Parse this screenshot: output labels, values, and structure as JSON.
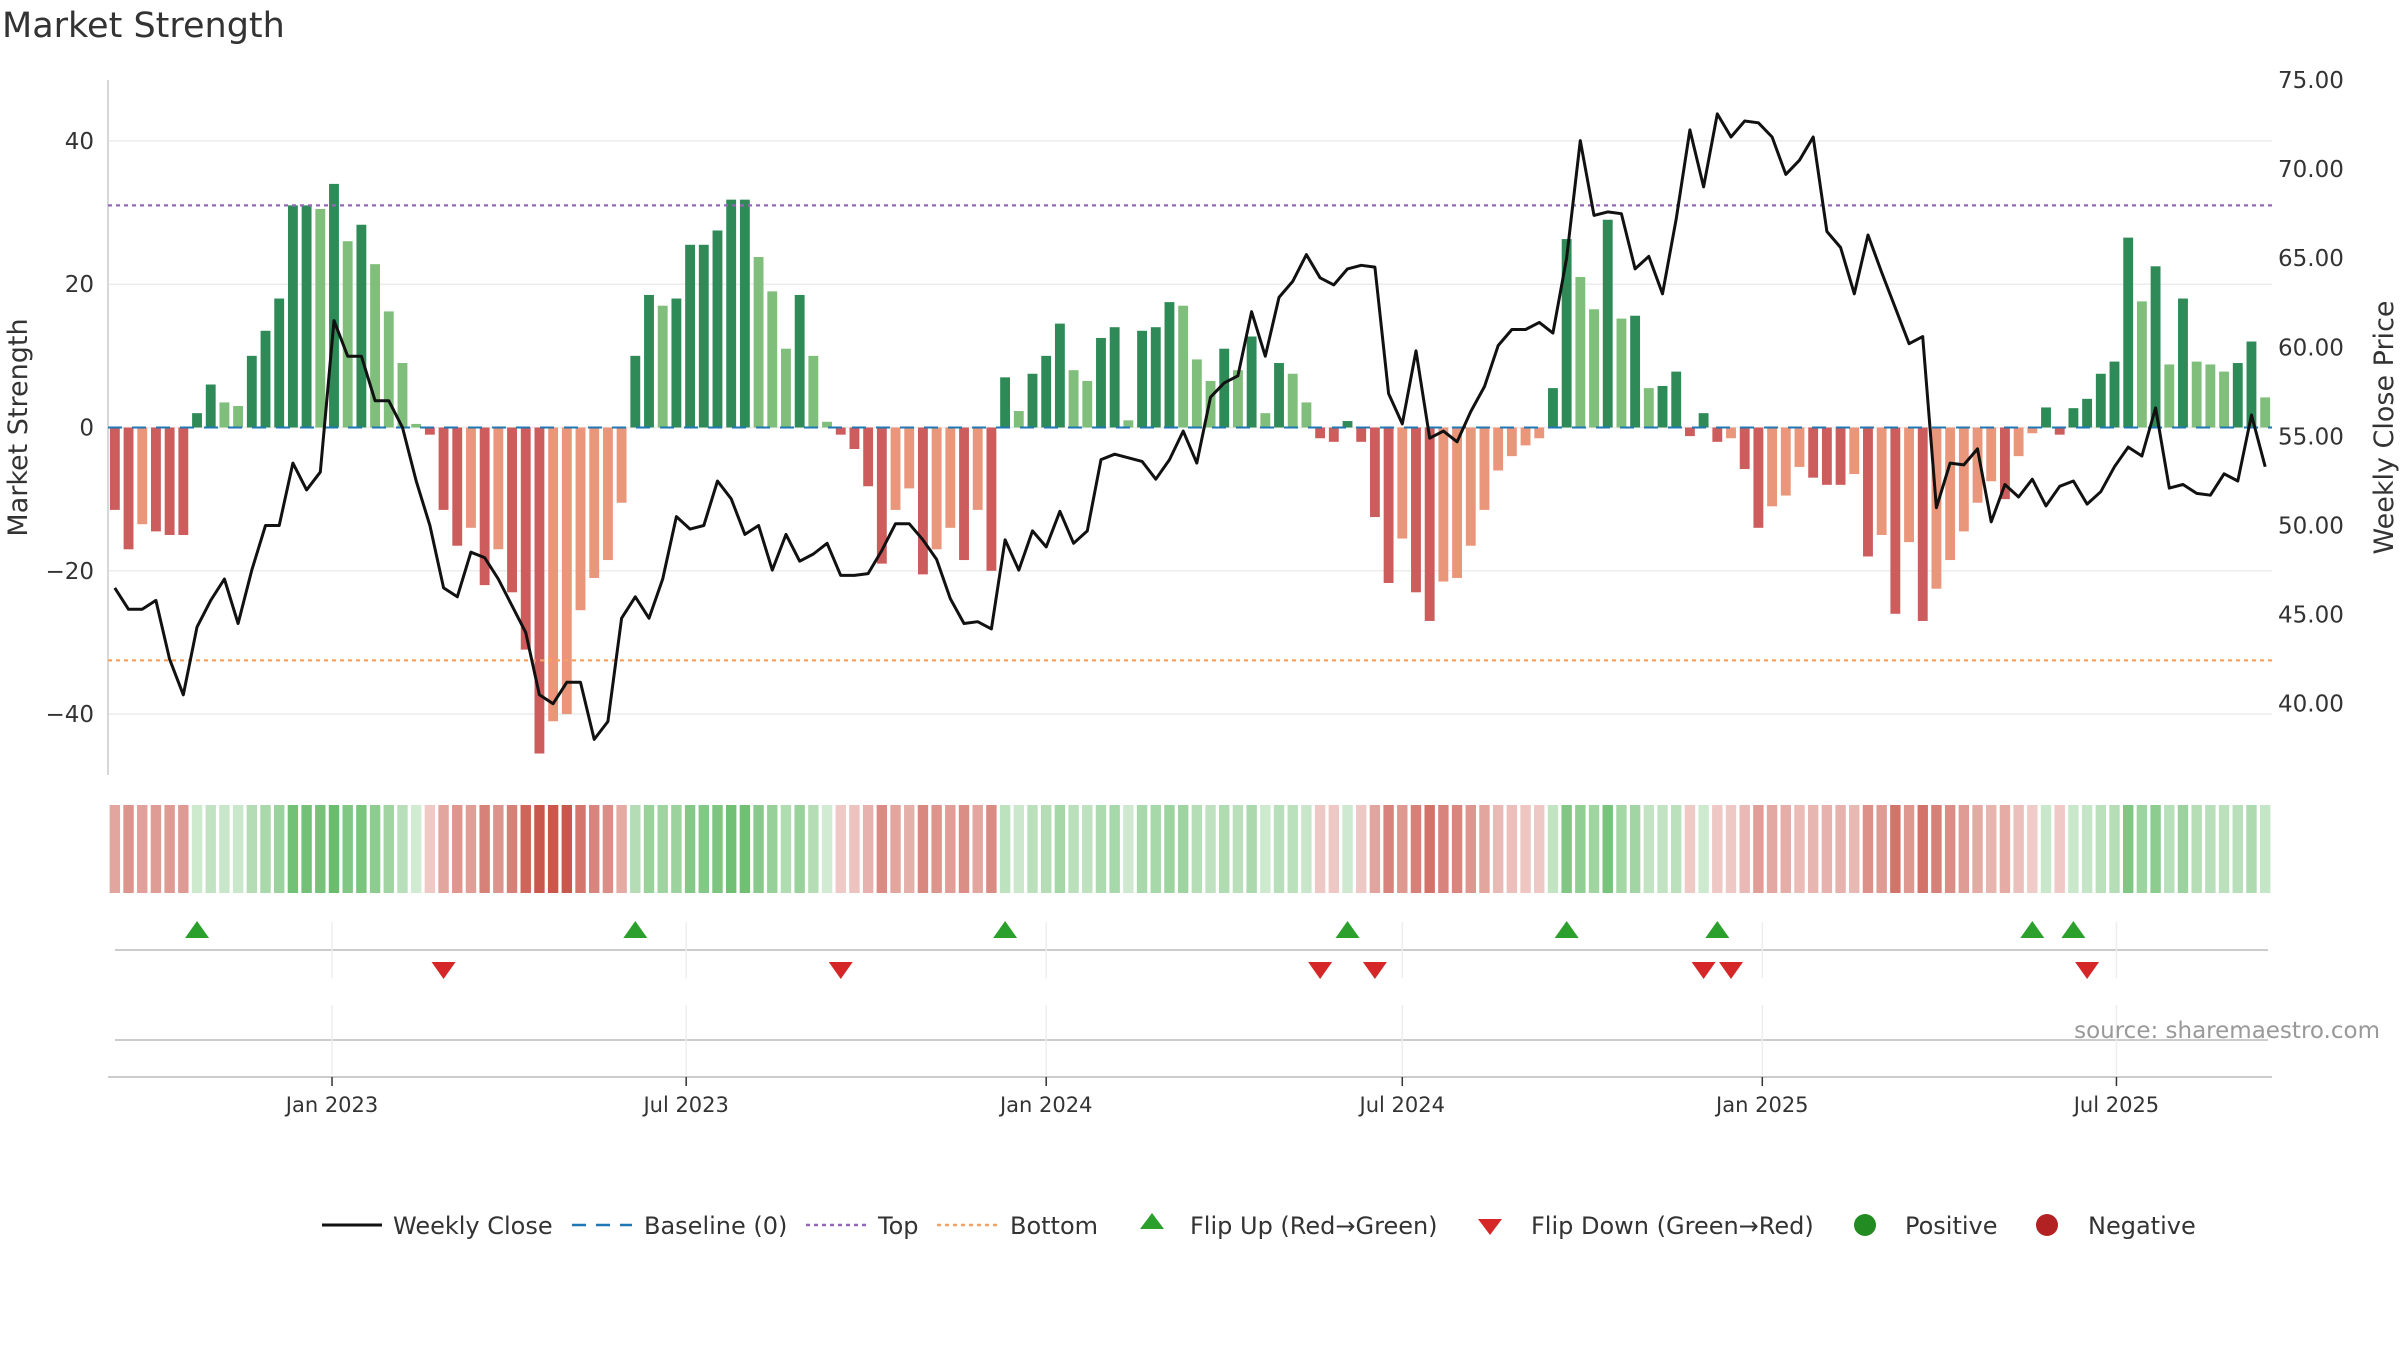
{
  "chart_data": {
    "type": "bar",
    "title": "Market Strength",
    "ylabel_left": "Market Strength",
    "ylabel_right": "Weekly Close Price",
    "ylim_left": [
      -48.5,
      48.5
    ],
    "ylim_right": [
      36.0,
      75.0
    ],
    "y_ticks_left": [
      40,
      20,
      0,
      -20,
      -40
    ],
    "y_tick_labels_left": [
      "40",
      "20",
      "0",
      "−20",
      "−40"
    ],
    "y_ticks_right": [
      75,
      70,
      65,
      60,
      55,
      50,
      45,
      40
    ],
    "y_tick_labels_right": [
      "75.00",
      "70.00",
      "65.00",
      "60.00",
      "55.00",
      "50.00",
      "45.00",
      "40.00"
    ],
    "x_start": "2022-09-12",
    "x_ticks": [
      {
        "date": "2023-01-01",
        "label": "Jan 2023"
      },
      {
        "date": "2023-07-01",
        "label": "Jul 2023"
      },
      {
        "date": "2024-01-01",
        "label": "Jan 2024"
      },
      {
        "date": "2024-07-01",
        "label": "Jul 2024"
      },
      {
        "date": "2025-01-01",
        "label": "Jan 2025"
      },
      {
        "date": "2025-07-01",
        "label": "Jul 2025"
      }
    ],
    "top_line": 31,
    "bottom_line": -32.5,
    "baseline": 0,
    "strength": [
      -11.5,
      -17,
      -13.5,
      -14.5,
      -15,
      -15,
      2,
      6,
      3.5,
      3,
      10,
      13.5,
      18,
      31,
      31,
      30.5,
      34,
      26,
      28.3,
      22.8,
      16.2,
      9,
      0.5,
      -1,
      -11.5,
      -16.5,
      -14,
      -22,
      -17,
      -23,
      -31,
      -45.5,
      -41,
      -40,
      -25.5,
      -21,
      -18.5,
      -10.5,
      10,
      18.5,
      17,
      18,
      25.5,
      25.5,
      27.5,
      31.8,
      31.8,
      23.8,
      19,
      11,
      18.5,
      10,
      0.8,
      -1,
      -3,
      -8.2,
      -19,
      -11.5,
      -8.5,
      -20.5,
      -17,
      -14,
      -18.5,
      -11.5,
      -20,
      7,
      2.3,
      7.5,
      10,
      14.5,
      8,
      6.5,
      12.5,
      14,
      1,
      13.5,
      14,
      17.5,
      17,
      9.5,
      6.5,
      11,
      8,
      12.7,
      2,
      9,
      7.5,
      3.5,
      -1.5,
      -2,
      0.9,
      -2,
      -12.5,
      -21.7,
      -15.5,
      -23,
      -27,
      -21.5,
      -21,
      -16.5,
      -11.5,
      -6,
      -4,
      -2.5,
      -1.5,
      5.5,
      26.3,
      21,
      16.5,
      29,
      15.2,
      15.6,
      5.5,
      5.8,
      7.8,
      -1.2,
      2,
      -2,
      -1.5,
      -5.8,
      -14,
      -11,
      -9.5,
      -5.5,
      -7,
      -8,
      -8,
      -6.5,
      -18,
      -15,
      -26,
      -16,
      -27,
      -22.5,
      -18.5,
      -14.5,
      -10.5,
      -7.5,
      -10,
      -4,
      -0.8,
      2.8,
      -1,
      2.7,
      4,
      7.5,
      9.2,
      26.5,
      17.6,
      22.5,
      8.8,
      18,
      9.2,
      8.8,
      7.8,
      9,
      12,
      4.2
    ],
    "weekly_close": [
      46.5,
      45.3,
      45.3,
      45.8,
      42.5,
      40.5,
      44.3,
      45.8,
      47,
      44.5,
      47.5,
      50,
      50,
      53.5,
      52,
      53,
      61.5,
      59.5,
      59.5,
      57,
      57,
      55.5,
      52.5,
      50,
      46.5,
      46,
      48.5,
      48.2,
      47,
      45.5,
      44,
      40.5,
      40,
      41.2,
      41.2,
      38,
      39,
      44.8,
      46,
      44.8,
      47,
      50.5,
      49.8,
      50,
      52.5,
      51.5,
      49.5,
      50,
      47.5,
      49.5,
      48,
      48.4,
      49,
      47.2,
      47.2,
      47.3,
      48.6,
      50.1,
      50.1,
      49.2,
      48.1,
      45.9,
      44.5,
      44.6,
      44.2,
      49.2,
      47.5,
      49.7,
      48.8,
      50.8,
      49,
      49.7,
      53.7,
      54,
      53.8,
      53.6,
      52.6,
      53.7,
      55.3,
      53.5,
      57.2,
      58,
      58.4,
      62,
      59.5,
      62.8,
      63.7,
      65.2,
      63.9,
      63.5,
      64.4,
      64.6,
      64.5,
      57.4,
      55.7,
      59.8,
      54.9,
      55.3,
      54.7,
      56.4,
      57.8,
      60.1,
      61,
      61,
      61.4,
      60.8,
      65,
      71.6,
      67.4,
      67.6,
      67.5,
      64.4,
      65.1,
      63,
      67.2,
      72.2,
      69,
      73.1,
      71.8,
      72.7,
      72.6,
      71.8,
      69.7,
      70.5,
      71.8,
      66.5,
      65.6,
      63,
      66.3,
      64.2,
      62.2,
      60.2,
      60.6,
      51,
      53.5,
      53.4,
      54.3,
      50.2,
      52.3,
      51.6,
      52.6,
      51.1,
      52.2,
      52.5,
      51.2,
      51.9,
      53.3,
      54.4,
      53.9,
      56.6,
      52.1,
      52.3,
      51.8,
      51.7,
      52.9,
      52.5,
      56.2,
      53.3
    ],
    "flip_up_weeks": [
      6,
      38,
      65,
      90,
      106,
      117,
      140,
      143
    ],
    "flip_down_weeks": [
      24,
      53,
      88,
      92,
      116,
      118,
      144
    ],
    "legend": [
      "Weekly Close",
      "Baseline (0)",
      "Top",
      "Bottom",
      "Flip Up (Red→Green)",
      "Flip Down (Green→Red)",
      "Positive",
      "Negative"
    ]
  },
  "colors": {
    "pos_strong": "#2e8b57",
    "pos_weak": "#7fbf7b",
    "neg_strong": "#cd5c5c",
    "neg_weak": "#e9967a",
    "close_line": "#111111",
    "baseline": "#1f77b4",
    "top": "#9467bd",
    "bottom": "#f4a261",
    "flip_up": "#2ca02c",
    "flip_down": "#d62728",
    "positive_dot": "#228b22",
    "negative_dot": "#b22222"
  },
  "source": "source: sharemaestro.com"
}
